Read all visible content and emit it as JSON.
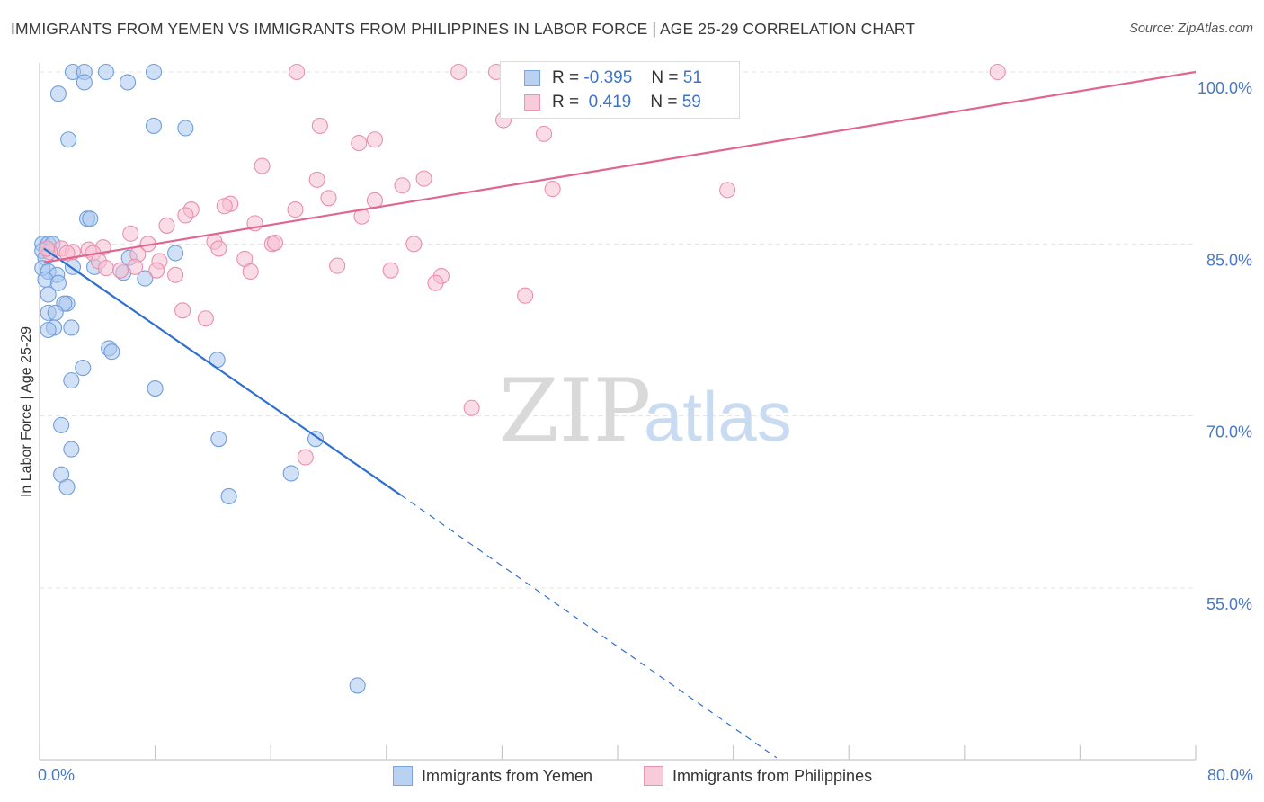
{
  "header": {
    "title": "IMMIGRANTS FROM YEMEN VS IMMIGRANTS FROM PHILIPPINES IN LABOR FORCE | AGE 25-29 CORRELATION CHART",
    "source": "Source: ZipAtlas.com"
  },
  "watermark": {
    "zip": "ZIP",
    "atlas": "atlas"
  },
  "legend_top": {
    "rows": [
      {
        "r_label": "R =",
        "r_value": "-0.395",
        "n_label": "N =",
        "n_value": "51"
      },
      {
        "r_label": "R =",
        "r_value": " 0.419",
        "n_label": "N =",
        "n_value": "59"
      }
    ]
  },
  "colors": {
    "blue_fill": "#a9c6ee",
    "blue_edge": "#6f9fdc",
    "blue_line": "#2f6fcf",
    "pink_fill": "#f6bfd1",
    "pink_edge": "#e890ae",
    "pink_line": "#e0668f",
    "grid": "#e3e3e3",
    "tick_text": "#4a78c2"
  },
  "chart_data": {
    "type": "scatter",
    "title": "IMMIGRANTS FROM YEMEN VS IMMIGRANTS FROM PHILIPPINES IN LABOR FORCE | AGE 25-29 CORRELATION CHART",
    "xlabel": "",
    "ylabel": "In Labor Force | Age 25-29",
    "xlim": [
      0,
      80
    ],
    "ylim": [
      40,
      103
    ],
    "x_tick_labels": [
      "0.0%",
      "80.0%"
    ],
    "y_ticks": [
      {
        "value": 100,
        "label": "100.0%"
      },
      {
        "value": 85,
        "label": "85.0%"
      },
      {
        "value": 70,
        "label": "70.0%"
      },
      {
        "value": 55,
        "label": "55.0%"
      }
    ],
    "grid": true,
    "series": [
      {
        "name": "Immigrants from Yemen",
        "color": "blue",
        "r": -0.395,
        "n": 51,
        "points": [
          [
            2.3,
            100
          ],
          [
            3.1,
            100
          ],
          [
            4.6,
            100
          ],
          [
            7.9,
            100
          ],
          [
            3.1,
            99.1
          ],
          [
            6.1,
            99.1
          ],
          [
            1.3,
            98.1
          ],
          [
            7.9,
            95.3
          ],
          [
            10.1,
            95.1
          ],
          [
            2.0,
            94.1
          ],
          [
            3.3,
            87.2
          ],
          [
            3.5,
            87.2
          ],
          [
            0.2,
            85.0
          ],
          [
            0.6,
            85.0
          ],
          [
            0.9,
            85.0
          ],
          [
            0.2,
            84.4
          ],
          [
            0.4,
            83.8
          ],
          [
            9.4,
            84.2
          ],
          [
            6.2,
            83.8
          ],
          [
            0.2,
            82.9
          ],
          [
            2.3,
            83.0
          ],
          [
            3.8,
            83.0
          ],
          [
            5.8,
            82.5
          ],
          [
            0.6,
            82.6
          ],
          [
            1.2,
            82.3
          ],
          [
            7.3,
            82.0
          ],
          [
            0.4,
            81.9
          ],
          [
            1.3,
            81.6
          ],
          [
            0.6,
            80.6
          ],
          [
            1.9,
            79.8
          ],
          [
            1.7,
            79.8
          ],
          [
            0.6,
            79.0
          ],
          [
            1.1,
            79.0
          ],
          [
            2.2,
            77.7
          ],
          [
            1.0,
            77.7
          ],
          [
            0.6,
            77.5
          ],
          [
            4.8,
            75.9
          ],
          [
            5.0,
            75.6
          ],
          [
            12.3,
            74.9
          ],
          [
            3.0,
            74.2
          ],
          [
            2.2,
            73.1
          ],
          [
            8.0,
            72.4
          ],
          [
            1.5,
            69.2
          ],
          [
            2.2,
            67.1
          ],
          [
            12.4,
            68.0
          ],
          [
            19.1,
            68.0
          ],
          [
            1.5,
            64.9
          ],
          [
            1.9,
            63.8
          ],
          [
            17.4,
            65.0
          ],
          [
            13.1,
            63.0
          ],
          [
            22.0,
            46.5
          ]
        ]
      },
      {
        "name": "Immigrants from Philippines",
        "color": "pink",
        "r": 0.419,
        "n": 59,
        "points": [
          [
            17.8,
            100
          ],
          [
            29.0,
            100
          ],
          [
            31.6,
            100
          ],
          [
            66.3,
            100
          ],
          [
            32.1,
            95.8
          ],
          [
            19.4,
            95.3
          ],
          [
            34.9,
            94.6
          ],
          [
            22.1,
            93.8
          ],
          [
            23.2,
            94.1
          ],
          [
            15.4,
            91.8
          ],
          [
            19.2,
            90.6
          ],
          [
            26.6,
            90.7
          ],
          [
            25.1,
            90.1
          ],
          [
            35.5,
            89.8
          ],
          [
            47.6,
            89.7
          ],
          [
            20.0,
            89.0
          ],
          [
            23.2,
            88.8
          ],
          [
            13.2,
            88.5
          ],
          [
            12.8,
            88.3
          ],
          [
            10.5,
            88.0
          ],
          [
            17.7,
            88.0
          ],
          [
            10.1,
            87.5
          ],
          [
            22.3,
            87.4
          ],
          [
            8.8,
            86.6
          ],
          [
            14.9,
            86.8
          ],
          [
            6.3,
            85.9
          ],
          [
            12.1,
            85.2
          ],
          [
            7.5,
            85.0
          ],
          [
            16.1,
            85.0
          ],
          [
            16.3,
            85.1
          ],
          [
            25.9,
            85.0
          ],
          [
            12.4,
            84.6
          ],
          [
            4.4,
            84.7
          ],
          [
            3.4,
            84.5
          ],
          [
            1.5,
            84.6
          ],
          [
            2.3,
            84.3
          ],
          [
            3.7,
            84.2
          ],
          [
            0.7,
            84.3
          ],
          [
            1.9,
            84.2
          ],
          [
            6.8,
            84.1
          ],
          [
            4.1,
            83.5
          ],
          [
            8.3,
            83.5
          ],
          [
            14.2,
            83.7
          ],
          [
            6.6,
            83.0
          ],
          [
            4.6,
            82.9
          ],
          [
            5.6,
            82.7
          ],
          [
            8.1,
            82.7
          ],
          [
            20.6,
            83.1
          ],
          [
            24.3,
            82.7
          ],
          [
            14.6,
            82.6
          ],
          [
            27.8,
            82.2
          ],
          [
            27.4,
            81.6
          ],
          [
            9.4,
            82.3
          ],
          [
            33.6,
            80.5
          ],
          [
            9.9,
            79.2
          ],
          [
            11.5,
            78.5
          ],
          [
            29.9,
            70.7
          ],
          [
            18.4,
            66.4
          ],
          [
            0.5,
            84.6
          ]
        ]
      }
    ],
    "trendlines": [
      {
        "series": "Immigrants from Yemen",
        "x": [
          0.3,
          25.0
        ],
        "y": [
          84.6,
          63.1
        ],
        "dashed_to": [
          51.0,
          40.2
        ]
      },
      {
        "series": "Immigrants from Philippines",
        "x": [
          0.3,
          80.0
        ],
        "y": [
          83.4,
          100.0
        ]
      }
    ]
  }
}
